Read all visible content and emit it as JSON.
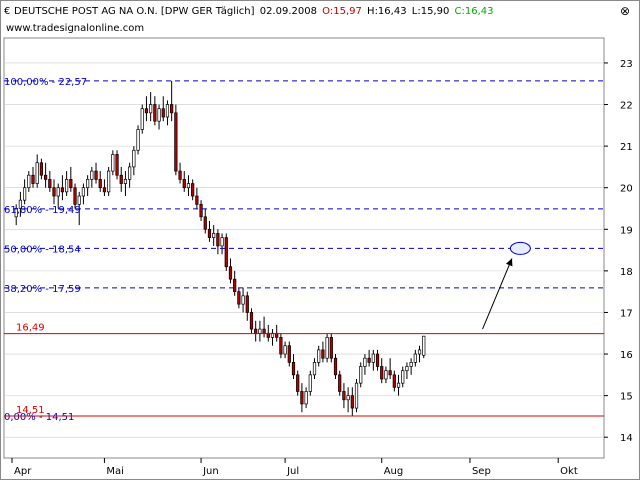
{
  "header": {
    "icon_glyph": "€",
    "instrument": "DEUTSCHE POST AG NA O.N. [DPW GER  Täglich]",
    "date": "02.09.2008",
    "open_text": "O:15,97",
    "high_text": "H:16,43",
    "low_text": "L:15,90",
    "close_text": "C:16,43",
    "website": "www.tradesignalonline.com",
    "close_button_glyph": "⊗"
  },
  "colors": {
    "background": "#ffffff",
    "up_candle": "#ffffff",
    "down_candle": "#b00000",
    "wick": "#000000",
    "fib_line": "#0000cc",
    "resistance": "#dd0000",
    "grid": "#cccccc",
    "open_color": "#cc0000",
    "close_color": "#00aa00"
  },
  "chart_data": {
    "type": "candlestick",
    "ylim": [
      13.5,
      23.6
    ],
    "xlim": [
      0,
      139
    ],
    "y_ticks": [
      14,
      15,
      16,
      17,
      18,
      19,
      20,
      21,
      22,
      23
    ],
    "y_tick_labels": [
      "14",
      "15",
      "16",
      "17",
      "18",
      "19",
      "20",
      "21",
      "22",
      "23"
    ],
    "x_ticks": [
      {
        "x": 0,
        "label": "Apr"
      },
      {
        "x": 22,
        "label": "Mai"
      },
      {
        "x": 45,
        "label": "Jun"
      },
      {
        "x": 65,
        "label": "Jul"
      },
      {
        "x": 88,
        "label": "Aug"
      },
      {
        "x": 109,
        "label": "Sep"
      },
      {
        "x": 130,
        "label": "Okt"
      }
    ],
    "fib_levels": [
      {
        "value": 22.57,
        "label": "100,00% - 22,57"
      },
      {
        "value": 19.49,
        "label": "61,80% - 19,49"
      },
      {
        "value": 18.54,
        "label": "50,00% - 18,54"
      },
      {
        "value": 17.59,
        "label": "38,20% - 17,59"
      },
      {
        "value": 14.51,
        "label": "0,00% - 14,51"
      }
    ],
    "horizontal_lines": [
      {
        "value": 16.49,
        "label": "16,49"
      },
      {
        "value": 14.51,
        "label": "14,51"
      }
    ],
    "annotation": {
      "arrow_from": {
        "x": 112,
        "y": 16.6
      },
      "arrow_to": {
        "x": 119,
        "y": 18.3
      },
      "ellipse_at": {
        "x": 121,
        "y": 18.54
      }
    },
    "candles": [
      [
        19.3,
        19.6,
        19.1,
        19.5
      ],
      [
        19.5,
        19.9,
        19.3,
        19.7
      ],
      [
        19.7,
        20.2,
        19.6,
        20.0
      ],
      [
        20.0,
        20.4,
        19.9,
        20.3
      ],
      [
        20.3,
        20.5,
        20.0,
        20.1
      ],
      [
        20.1,
        20.8,
        20.0,
        20.6
      ],
      [
        20.6,
        20.7,
        20.2,
        20.3
      ],
      [
        20.3,
        20.6,
        20.0,
        20.2
      ],
      [
        20.2,
        20.4,
        19.9,
        20.0
      ],
      [
        20.0,
        20.2,
        19.6,
        19.8
      ],
      [
        19.8,
        20.1,
        19.5,
        20.0
      ],
      [
        20.0,
        20.3,
        19.7,
        19.9
      ],
      [
        19.9,
        20.4,
        19.8,
        20.2
      ],
      [
        20.2,
        20.5,
        19.9,
        20.0
      ],
      [
        20.0,
        20.1,
        19.5,
        19.6
      ],
      [
        19.6,
        19.9,
        19.1,
        19.8
      ],
      [
        19.8,
        20.1,
        19.6,
        20.0
      ],
      [
        20.0,
        20.3,
        19.8,
        20.2
      ],
      [
        20.2,
        20.5,
        20.0,
        20.4
      ],
      [
        20.4,
        20.6,
        20.1,
        20.2
      ],
      [
        20.2,
        20.4,
        19.9,
        20.0
      ],
      [
        20.0,
        20.2,
        19.8,
        19.9
      ],
      [
        19.9,
        20.5,
        19.8,
        20.4
      ],
      [
        20.4,
        20.9,
        20.3,
        20.8
      ],
      [
        20.8,
        20.9,
        20.2,
        20.3
      ],
      [
        20.3,
        20.5,
        19.9,
        20.1
      ],
      [
        20.1,
        20.4,
        19.8,
        20.2
      ],
      [
        20.2,
        20.6,
        20.0,
        20.5
      ],
      [
        20.5,
        21.0,
        20.3,
        20.9
      ],
      [
        20.9,
        21.5,
        20.8,
        21.4
      ],
      [
        21.4,
        22.0,
        21.3,
        21.9
      ],
      [
        21.9,
        22.2,
        21.6,
        21.8
      ],
      [
        21.8,
        22.3,
        21.6,
        22.0
      ],
      [
        22.0,
        22.2,
        21.5,
        21.6
      ],
      [
        21.6,
        22.0,
        21.4,
        21.9
      ],
      [
        21.9,
        22.2,
        21.6,
        21.7
      ],
      [
        21.7,
        22.1,
        21.5,
        22.0
      ],
      [
        22.0,
        22.57,
        21.6,
        21.8
      ],
      [
        21.8,
        22.0,
        20.3,
        20.4
      ],
      [
        20.4,
        20.6,
        20.1,
        20.2
      ],
      [
        20.2,
        20.4,
        19.9,
        20.0
      ],
      [
        20.0,
        20.3,
        19.8,
        20.1
      ],
      [
        20.1,
        20.2,
        19.7,
        19.8
      ],
      [
        19.8,
        20.0,
        19.5,
        19.6
      ],
      [
        19.6,
        19.7,
        19.2,
        19.3
      ],
      [
        19.3,
        19.5,
        18.9,
        19.0
      ],
      [
        19.0,
        19.2,
        18.7,
        18.8
      ],
      [
        18.8,
        19.1,
        18.6,
        18.9
      ],
      [
        18.9,
        19.0,
        18.4,
        18.6
      ],
      [
        18.6,
        18.9,
        18.4,
        18.8
      ],
      [
        18.8,
        18.9,
        18.0,
        18.1
      ],
      [
        18.1,
        18.3,
        17.7,
        17.8
      ],
      [
        17.8,
        18.0,
        17.4,
        17.5
      ],
      [
        17.5,
        17.6,
        17.1,
        17.2
      ],
      [
        17.2,
        17.6,
        17.0,
        17.4
      ],
      [
        17.4,
        17.5,
        16.8,
        17.0
      ],
      [
        17.0,
        17.1,
        16.5,
        16.6
      ],
      [
        16.6,
        16.8,
        16.3,
        16.5
      ],
      [
        16.5,
        16.8,
        16.3,
        16.6
      ],
      [
        16.6,
        16.9,
        16.4,
        16.5
      ],
      [
        16.5,
        16.7,
        16.3,
        16.4
      ],
      [
        16.4,
        16.6,
        16.2,
        16.5
      ],
      [
        16.5,
        16.7,
        16.3,
        16.4
      ],
      [
        16.4,
        16.5,
        15.9,
        16.0
      ],
      [
        16.0,
        16.3,
        15.9,
        16.2
      ],
      [
        16.2,
        16.3,
        15.7,
        15.8
      ],
      [
        15.8,
        16.0,
        15.4,
        15.5
      ],
      [
        15.5,
        15.6,
        15.0,
        15.1
      ],
      [
        15.1,
        15.3,
        14.6,
        14.8
      ],
      [
        14.8,
        15.2,
        14.7,
        15.1
      ],
      [
        15.1,
        15.6,
        15.0,
        15.5
      ],
      [
        15.5,
        15.9,
        15.4,
        15.8
      ],
      [
        15.8,
        16.2,
        15.7,
        16.1
      ],
      [
        16.1,
        16.3,
        15.8,
        15.9
      ],
      [
        15.9,
        16.49,
        15.8,
        16.4
      ],
      [
        16.4,
        16.49,
        15.8,
        15.9
      ],
      [
        15.9,
        16.0,
        15.4,
        15.5
      ],
      [
        15.5,
        15.6,
        15.0,
        15.1
      ],
      [
        15.1,
        15.3,
        14.7,
        14.9
      ],
      [
        14.9,
        15.2,
        14.6,
        15.0
      ],
      [
        15.0,
        15.2,
        14.51,
        14.7
      ],
      [
        14.7,
        15.4,
        14.6,
        15.3
      ],
      [
        15.3,
        15.8,
        15.2,
        15.7
      ],
      [
        15.7,
        16.0,
        15.5,
        15.9
      ],
      [
        15.9,
        16.1,
        15.7,
        15.8
      ],
      [
        15.8,
        16.1,
        15.6,
        16.0
      ],
      [
        16.0,
        16.1,
        15.6,
        15.7
      ],
      [
        15.7,
        15.9,
        15.3,
        15.4
      ],
      [
        15.4,
        15.7,
        15.3,
        15.6
      ],
      [
        15.6,
        15.9,
        15.4,
        15.5
      ],
      [
        15.5,
        15.6,
        15.1,
        15.2
      ],
      [
        15.2,
        15.5,
        15.0,
        15.3
      ],
      [
        15.3,
        15.7,
        15.2,
        15.6
      ],
      [
        15.6,
        15.8,
        15.4,
        15.7
      ],
      [
        15.7,
        15.9,
        15.5,
        15.8
      ],
      [
        15.8,
        16.1,
        15.7,
        16.0
      ],
      [
        16.0,
        16.2,
        15.8,
        16.1
      ],
      [
        15.97,
        16.43,
        15.9,
        16.43
      ]
    ]
  }
}
